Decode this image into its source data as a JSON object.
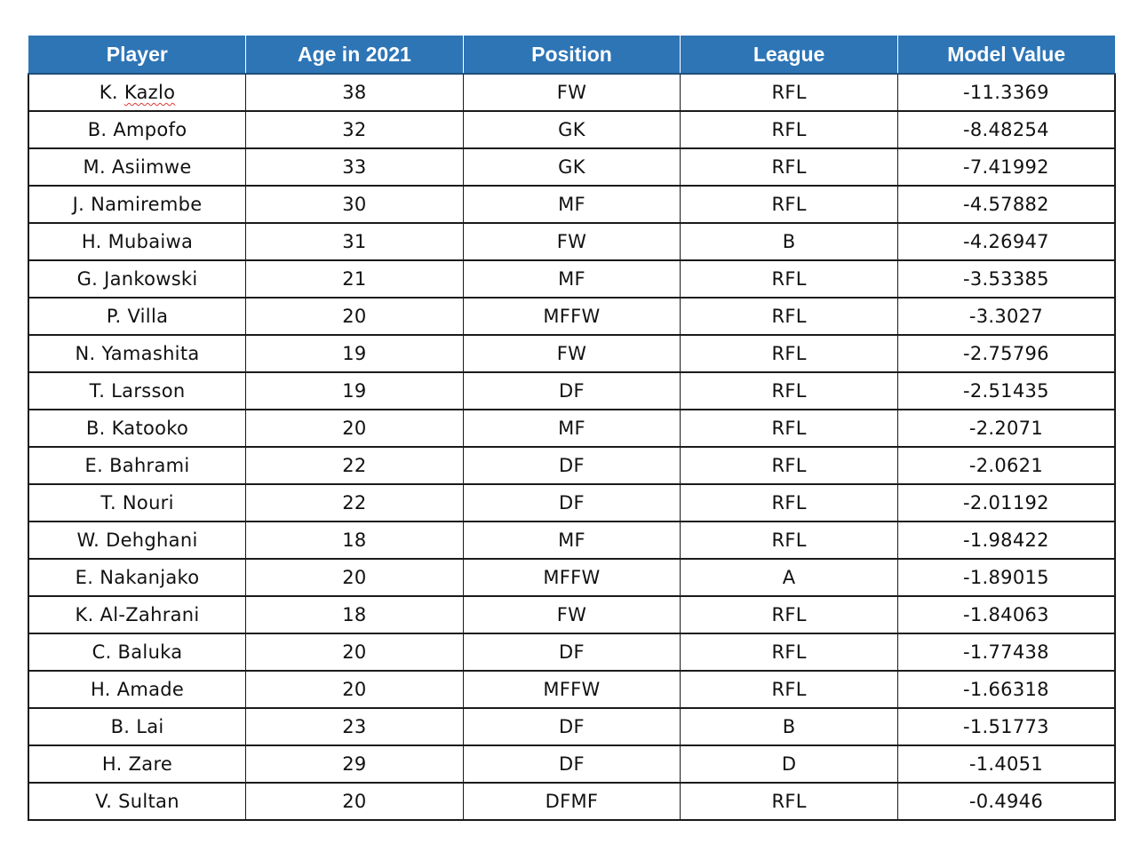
{
  "table": {
    "headers": [
      "Player",
      "Age in 2021",
      "Position",
      "League",
      "Model Value"
    ],
    "rows": [
      {
        "player_prefix": "K. ",
        "player_marked": "Kazlo",
        "age": "38",
        "position": "FW",
        "league": "RFL",
        "value": "-11.3369"
      },
      {
        "player": "B. Ampofo",
        "age": "32",
        "position": "GK",
        "league": "RFL",
        "value": "-8.48254"
      },
      {
        "player": "M. Asiimwe",
        "age": "33",
        "position": "GK",
        "league": "RFL",
        "value": "-7.41992"
      },
      {
        "player": "J. Namirembe",
        "age": "30",
        "position": "MF",
        "league": "RFL",
        "value": "-4.57882"
      },
      {
        "player": "H. Mubaiwa",
        "age": "31",
        "position": "FW",
        "league": "B",
        "value": "-4.26947"
      },
      {
        "player": "G. Jankowski",
        "age": "21",
        "position": "MF",
        "league": "RFL",
        "value": "-3.53385"
      },
      {
        "player": "P. Villa",
        "age": "20",
        "position": "MFFW",
        "league": "RFL",
        "value": "-3.3027"
      },
      {
        "player": "N. Yamashita",
        "age": "19",
        "position": "FW",
        "league": "RFL",
        "value": "-2.75796"
      },
      {
        "player": "T. Larsson",
        "age": "19",
        "position": "DF",
        "league": "RFL",
        "value": "-2.51435"
      },
      {
        "player": "B. Katooko",
        "age": "20",
        "position": "MF",
        "league": "RFL",
        "value": "-2.2071"
      },
      {
        "player": "E. Bahrami",
        "age": "22",
        "position": "DF",
        "league": "RFL",
        "value": "-2.0621"
      },
      {
        "player": "T. Nouri",
        "age": "22",
        "position": "DF",
        "league": "RFL",
        "value": "-2.01192"
      },
      {
        "player": "W. Dehghani",
        "age": "18",
        "position": "MF",
        "league": "RFL",
        "value": "-1.98422"
      },
      {
        "player": "E. Nakanjako",
        "age": "20",
        "position": "MFFW",
        "league": "A",
        "value": "-1.89015"
      },
      {
        "player": "K. Al-Zahrani",
        "age": "18",
        "position": "FW",
        "league": "RFL",
        "value": "-1.84063"
      },
      {
        "player": "C. Baluka",
        "age": "20",
        "position": "DF",
        "league": "RFL",
        "value": "-1.77438"
      },
      {
        "player": "H. Amade",
        "age": "20",
        "position": "MFFW",
        "league": "RFL",
        "value": "-1.66318"
      },
      {
        "player": "B. Lai",
        "age": "23",
        "position": "DF",
        "league": "B",
        "value": "-1.51773"
      },
      {
        "player": "H. Zare",
        "age": "29",
        "position": "DF",
        "league": "D",
        "value": "-1.4051"
      },
      {
        "player": "V. Sultan",
        "age": "20",
        "position": "DFMF",
        "league": "RFL",
        "value": "-0.4946"
      }
    ]
  },
  "colors": {
    "header_bg": "#2e75b6",
    "header_text": "#ffffff",
    "spellcheck_underline": "#e03a3a"
  }
}
